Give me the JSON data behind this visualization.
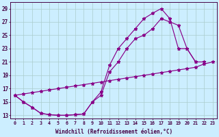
{
  "bg_color": "#cceeff",
  "grid_color": "#aacccc",
  "line_color": "#880088",
  "xlabel": "Windchill (Refroidissement éolien,°C)",
  "xlim": [
    -0.5,
    23.5
  ],
  "ylim": [
    12.5,
    30.0
  ],
  "xticks": [
    0,
    1,
    2,
    3,
    4,
    5,
    6,
    7,
    8,
    9,
    10,
    11,
    12,
    13,
    14,
    15,
    16,
    17,
    18,
    19,
    20,
    21,
    22,
    23
  ],
  "yticks": [
    13,
    15,
    17,
    19,
    21,
    23,
    25,
    27,
    29
  ],
  "line1_x": [
    0,
    1,
    2,
    3,
    4,
    5,
    6,
    7,
    8,
    9,
    10,
    11,
    12,
    13,
    14,
    15,
    16,
    17,
    18,
    19,
    20,
    21
  ],
  "line1_y": [
    16.0,
    15.0,
    14.2,
    13.3,
    13.1,
    13.0,
    13.0,
    13.1,
    13.2,
    15.0,
    16.5,
    20.5,
    23.0,
    24.5,
    26.0,
    27.5,
    28.3,
    29.0,
    27.5,
    23.0,
    23.0,
    21.0
  ],
  "line2_x": [
    0,
    1,
    2,
    3,
    4,
    5,
    6,
    7,
    8,
    9,
    10,
    11,
    12,
    13,
    14,
    15,
    16,
    17,
    18,
    19,
    20,
    21,
    22,
    23
  ],
  "line2_y": [
    16.0,
    16.2,
    16.4,
    16.6,
    16.8,
    17.0,
    17.2,
    17.4,
    17.6,
    17.8,
    18.0,
    18.2,
    18.4,
    18.6,
    18.8,
    19.0,
    19.2,
    19.4,
    19.6,
    19.8,
    20.0,
    20.2,
    20.7,
    21.0
  ],
  "line3_x": [
    0,
    1,
    2,
    3,
    4,
    5,
    6,
    7,
    8,
    9,
    10,
    11,
    12,
    13,
    14,
    15,
    16,
    17,
    18,
    19,
    20,
    21,
    22
  ],
  "line3_y": [
    16.0,
    15.0,
    14.2,
    13.3,
    13.1,
    13.0,
    13.0,
    13.1,
    13.2,
    15.0,
    16.0,
    19.5,
    21.0,
    23.0,
    24.5,
    25.0,
    26.0,
    27.5,
    27.0,
    26.5,
    23.0,
    21.0,
    21.0
  ]
}
